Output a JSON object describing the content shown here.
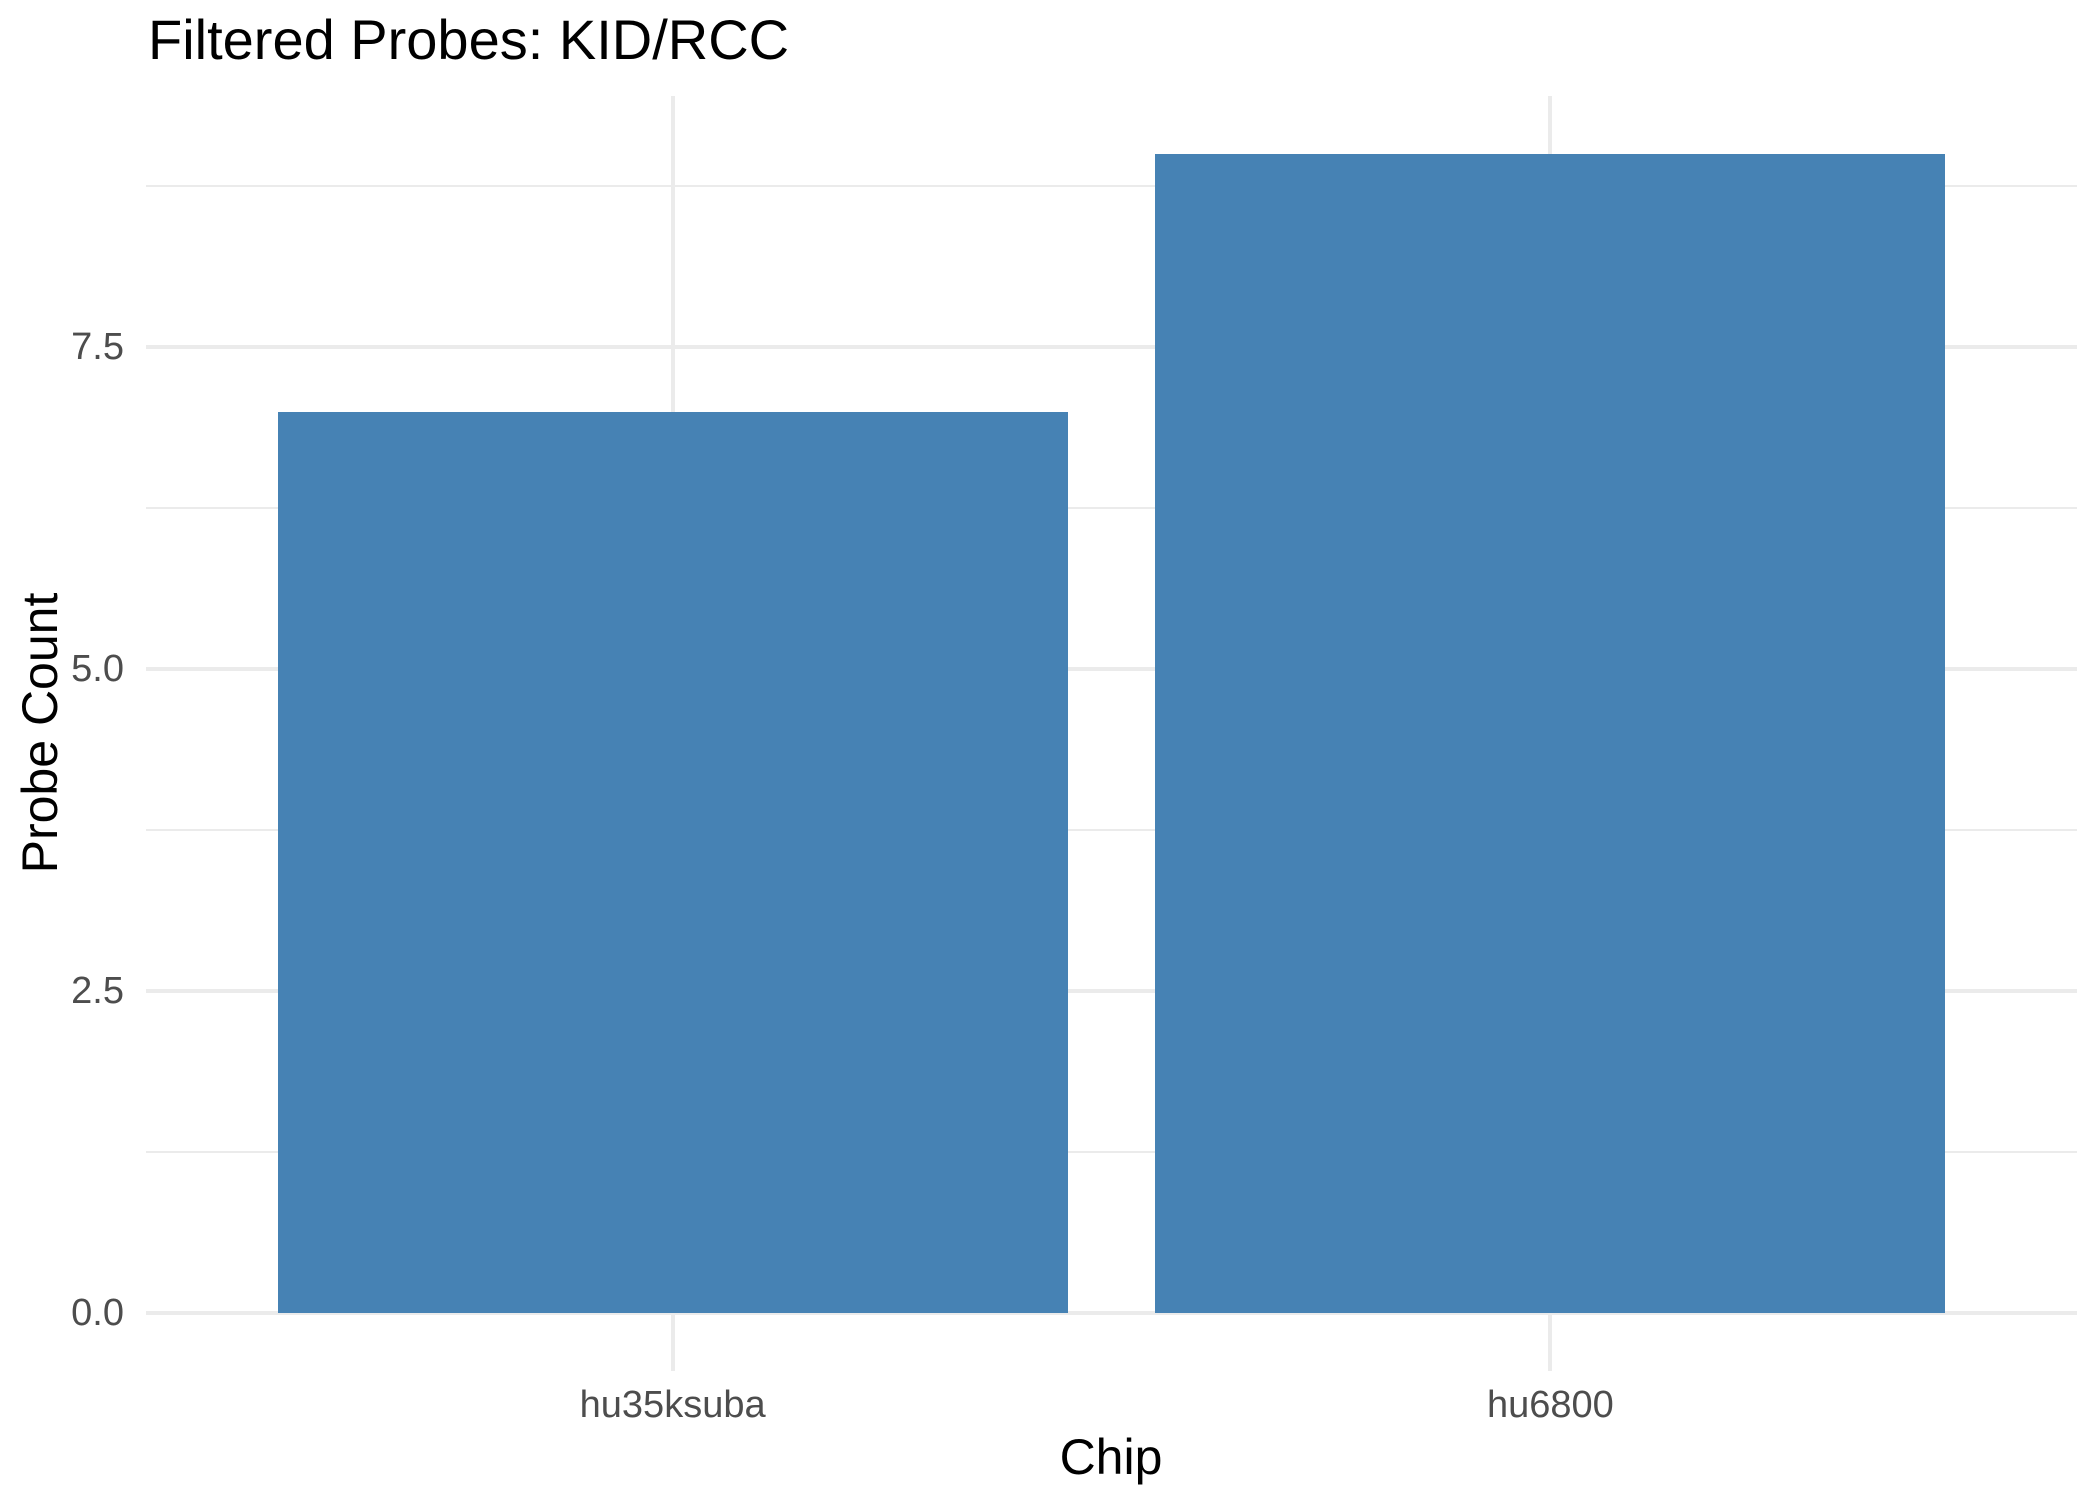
{
  "chart_data": {
    "type": "bar",
    "title": "Filtered Probes: KID/RCC",
    "xlabel": "Chip",
    "ylabel": "Probe Count",
    "categories": [
      "hu35ksuba",
      "hu6800"
    ],
    "values": [
      7,
      9
    ],
    "x_positions": [
      1,
      2
    ],
    "xlim": [
      0.4,
      2.6
    ],
    "ylim": [
      -0.45,
      9.45
    ],
    "bar_width": 0.9,
    "yticks": {
      "values": [
        0,
        2.5,
        5,
        7.5
      ],
      "labels": [
        "0.0",
        "2.5",
        "5.0",
        "7.5"
      ]
    },
    "yticks_minor": [
      1.25,
      3.75,
      6.25,
      8.75
    ],
    "bar_color": "#4682B4",
    "grid_color": "#EBEBEB",
    "tick_label_color": "#4D4D4D",
    "title_color": "#000000",
    "background_color": "#FFFFFF",
    "legend": "none",
    "grid": "major and minor horizontal lines; vertical major lines at category centers"
  }
}
